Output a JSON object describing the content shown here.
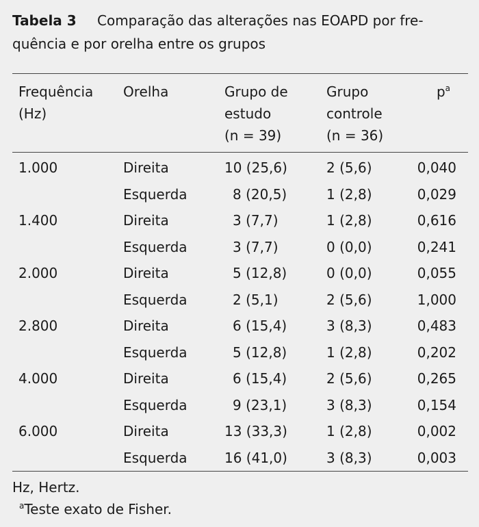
{
  "title": {
    "label": "Tabela 3",
    "lines": [
      "Comparação das alterações nas EOAPD por fre-",
      "quência e por orelha entre os grupos"
    ]
  },
  "table": {
    "header": [
      {
        "lines": [
          "Frequência",
          "(Hz)"
        ]
      },
      {
        "lines": [
          "Orelha"
        ]
      },
      {
        "lines": [
          "Grupo de",
          "estudo",
          "(n = 39)"
        ]
      },
      {
        "lines": [
          "Grupo",
          "controle",
          "(n = 36)"
        ]
      },
      {
        "lines": [
          "p"
        ],
        "sup": "a"
      }
    ],
    "groups": [
      {
        "frequency": "1.000",
        "rows": [
          [
            "Direita",
            "10 (25,6)",
            "2 (5,6)",
            "0,040"
          ],
          [
            "Esquerda",
            "8 (20,5)",
            "1 (2,8)",
            "0,029"
          ]
        ]
      },
      {
        "frequency": "1.400",
        "rows": [
          [
            "Direita",
            "3 (7,7)",
            "1 (2,8)",
            "0,616"
          ],
          [
            "Esquerda",
            "3 (7,7)",
            "0 (0,0)",
            "0,241"
          ]
        ]
      },
      {
        "frequency": "2.000",
        "rows": [
          [
            "Direita",
            "5 (12,8)",
            "0 (0,0)",
            "0,055"
          ],
          [
            "Esquerda",
            "2 (5,1)",
            "2 (5,6)",
            "1,000"
          ]
        ]
      },
      {
        "frequency": "2.800",
        "rows": [
          [
            "Direita",
            "6 (15,4)",
            "3 (8,3)",
            "0,483"
          ],
          [
            "Esquerda",
            "5 (12,8)",
            "1 (2,8)",
            "0,202"
          ]
        ]
      },
      {
        "frequency": "4.000",
        "rows": [
          [
            "Direita",
            "6 (15,4)",
            "2 (5,6)",
            "0,265"
          ],
          [
            "Esquerda",
            "9 (23,1)",
            "3 (8,3)",
            "0,154"
          ]
        ]
      },
      {
        "frequency": "6.000",
        "rows": [
          [
            "Direita",
            "13 (33,3)",
            "1 (2,8)",
            "0,002"
          ],
          [
            "Esquerda",
            "16 (41,0)",
            "3 (8,3)",
            "0,003"
          ]
        ]
      }
    ]
  },
  "footer": {
    "abbreviation": "Hz, Hertz.",
    "note": {
      "marker": "a",
      "text": "Teste exato de Fisher."
    }
  }
}
